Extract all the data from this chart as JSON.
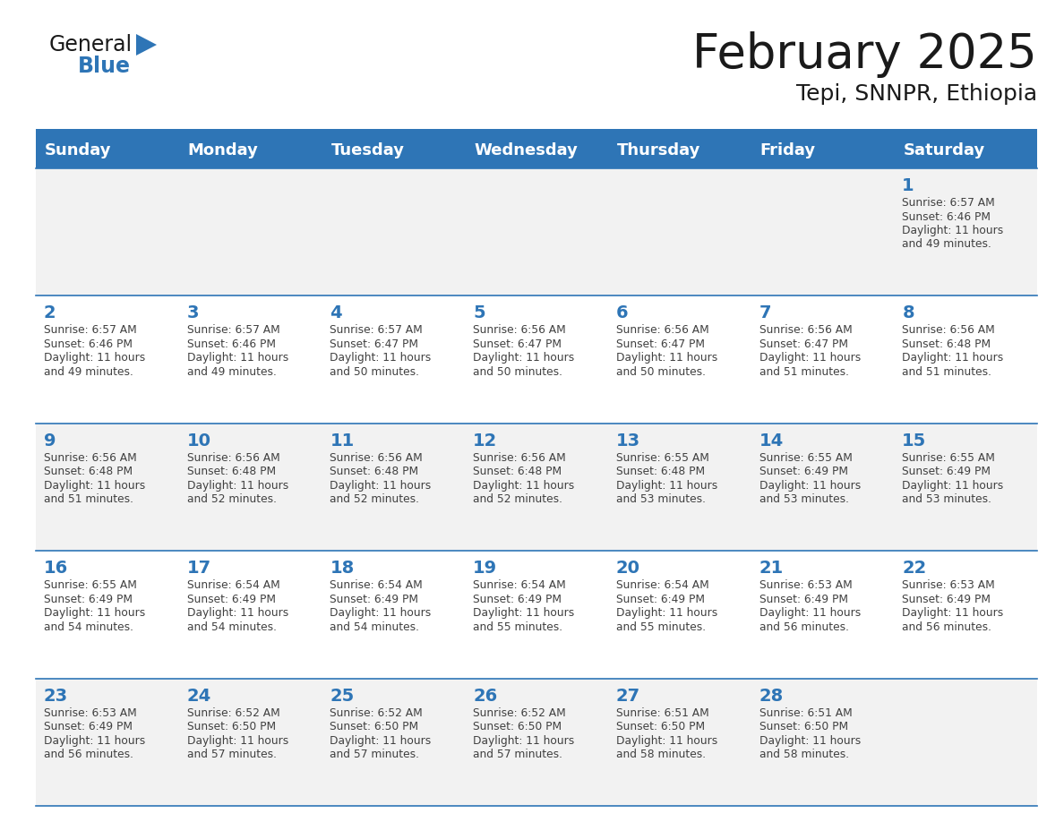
{
  "title": "February 2025",
  "subtitle": "Tepi, SNNPR, Ethiopia",
  "days_of_week": [
    "Sunday",
    "Monday",
    "Tuesday",
    "Wednesday",
    "Thursday",
    "Friday",
    "Saturday"
  ],
  "header_bg": "#2E75B6",
  "header_text": "#FFFFFF",
  "row_bg_light": "#F2F2F2",
  "row_bg_white": "#FFFFFF",
  "day_num_color": "#2E75B6",
  "text_color": "#404040",
  "separator_color": "#2E75B6",
  "calendar": [
    [
      null,
      null,
      null,
      null,
      null,
      null,
      {
        "day": 1,
        "sunrise": "6:57 AM",
        "sunset": "6:46 PM",
        "daylight_hours": 11,
        "daylight_minutes": 49
      }
    ],
    [
      {
        "day": 2,
        "sunrise": "6:57 AM",
        "sunset": "6:46 PM",
        "daylight_hours": 11,
        "daylight_minutes": 49
      },
      {
        "day": 3,
        "sunrise": "6:57 AM",
        "sunset": "6:46 PM",
        "daylight_hours": 11,
        "daylight_minutes": 49
      },
      {
        "day": 4,
        "sunrise": "6:57 AM",
        "sunset": "6:47 PM",
        "daylight_hours": 11,
        "daylight_minutes": 50
      },
      {
        "day": 5,
        "sunrise": "6:56 AM",
        "sunset": "6:47 PM",
        "daylight_hours": 11,
        "daylight_minutes": 50
      },
      {
        "day": 6,
        "sunrise": "6:56 AM",
        "sunset": "6:47 PM",
        "daylight_hours": 11,
        "daylight_minutes": 50
      },
      {
        "day": 7,
        "sunrise": "6:56 AM",
        "sunset": "6:47 PM",
        "daylight_hours": 11,
        "daylight_minutes": 51
      },
      {
        "day": 8,
        "sunrise": "6:56 AM",
        "sunset": "6:48 PM",
        "daylight_hours": 11,
        "daylight_minutes": 51
      }
    ],
    [
      {
        "day": 9,
        "sunrise": "6:56 AM",
        "sunset": "6:48 PM",
        "daylight_hours": 11,
        "daylight_minutes": 51
      },
      {
        "day": 10,
        "sunrise": "6:56 AM",
        "sunset": "6:48 PM",
        "daylight_hours": 11,
        "daylight_minutes": 52
      },
      {
        "day": 11,
        "sunrise": "6:56 AM",
        "sunset": "6:48 PM",
        "daylight_hours": 11,
        "daylight_minutes": 52
      },
      {
        "day": 12,
        "sunrise": "6:56 AM",
        "sunset": "6:48 PM",
        "daylight_hours": 11,
        "daylight_minutes": 52
      },
      {
        "day": 13,
        "sunrise": "6:55 AM",
        "sunset": "6:48 PM",
        "daylight_hours": 11,
        "daylight_minutes": 53
      },
      {
        "day": 14,
        "sunrise": "6:55 AM",
        "sunset": "6:49 PM",
        "daylight_hours": 11,
        "daylight_minutes": 53
      },
      {
        "day": 15,
        "sunrise": "6:55 AM",
        "sunset": "6:49 PM",
        "daylight_hours": 11,
        "daylight_minutes": 53
      }
    ],
    [
      {
        "day": 16,
        "sunrise": "6:55 AM",
        "sunset": "6:49 PM",
        "daylight_hours": 11,
        "daylight_minutes": 54
      },
      {
        "day": 17,
        "sunrise": "6:54 AM",
        "sunset": "6:49 PM",
        "daylight_hours": 11,
        "daylight_minutes": 54
      },
      {
        "day": 18,
        "sunrise": "6:54 AM",
        "sunset": "6:49 PM",
        "daylight_hours": 11,
        "daylight_minutes": 54
      },
      {
        "day": 19,
        "sunrise": "6:54 AM",
        "sunset": "6:49 PM",
        "daylight_hours": 11,
        "daylight_minutes": 55
      },
      {
        "day": 20,
        "sunrise": "6:54 AM",
        "sunset": "6:49 PM",
        "daylight_hours": 11,
        "daylight_minutes": 55
      },
      {
        "day": 21,
        "sunrise": "6:53 AM",
        "sunset": "6:49 PM",
        "daylight_hours": 11,
        "daylight_minutes": 56
      },
      {
        "day": 22,
        "sunrise": "6:53 AM",
        "sunset": "6:49 PM",
        "daylight_hours": 11,
        "daylight_minutes": 56
      }
    ],
    [
      {
        "day": 23,
        "sunrise": "6:53 AM",
        "sunset": "6:49 PM",
        "daylight_hours": 11,
        "daylight_minutes": 56
      },
      {
        "day": 24,
        "sunrise": "6:52 AM",
        "sunset": "6:50 PM",
        "daylight_hours": 11,
        "daylight_minutes": 57
      },
      {
        "day": 25,
        "sunrise": "6:52 AM",
        "sunset": "6:50 PM",
        "daylight_hours": 11,
        "daylight_minutes": 57
      },
      {
        "day": 26,
        "sunrise": "6:52 AM",
        "sunset": "6:50 PM",
        "daylight_hours": 11,
        "daylight_minutes": 57
      },
      {
        "day": 27,
        "sunrise": "6:51 AM",
        "sunset": "6:50 PM",
        "daylight_hours": 11,
        "daylight_minutes": 58
      },
      {
        "day": 28,
        "sunrise": "6:51 AM",
        "sunset": "6:50 PM",
        "daylight_hours": 11,
        "daylight_minutes": 58
      },
      null
    ]
  ]
}
